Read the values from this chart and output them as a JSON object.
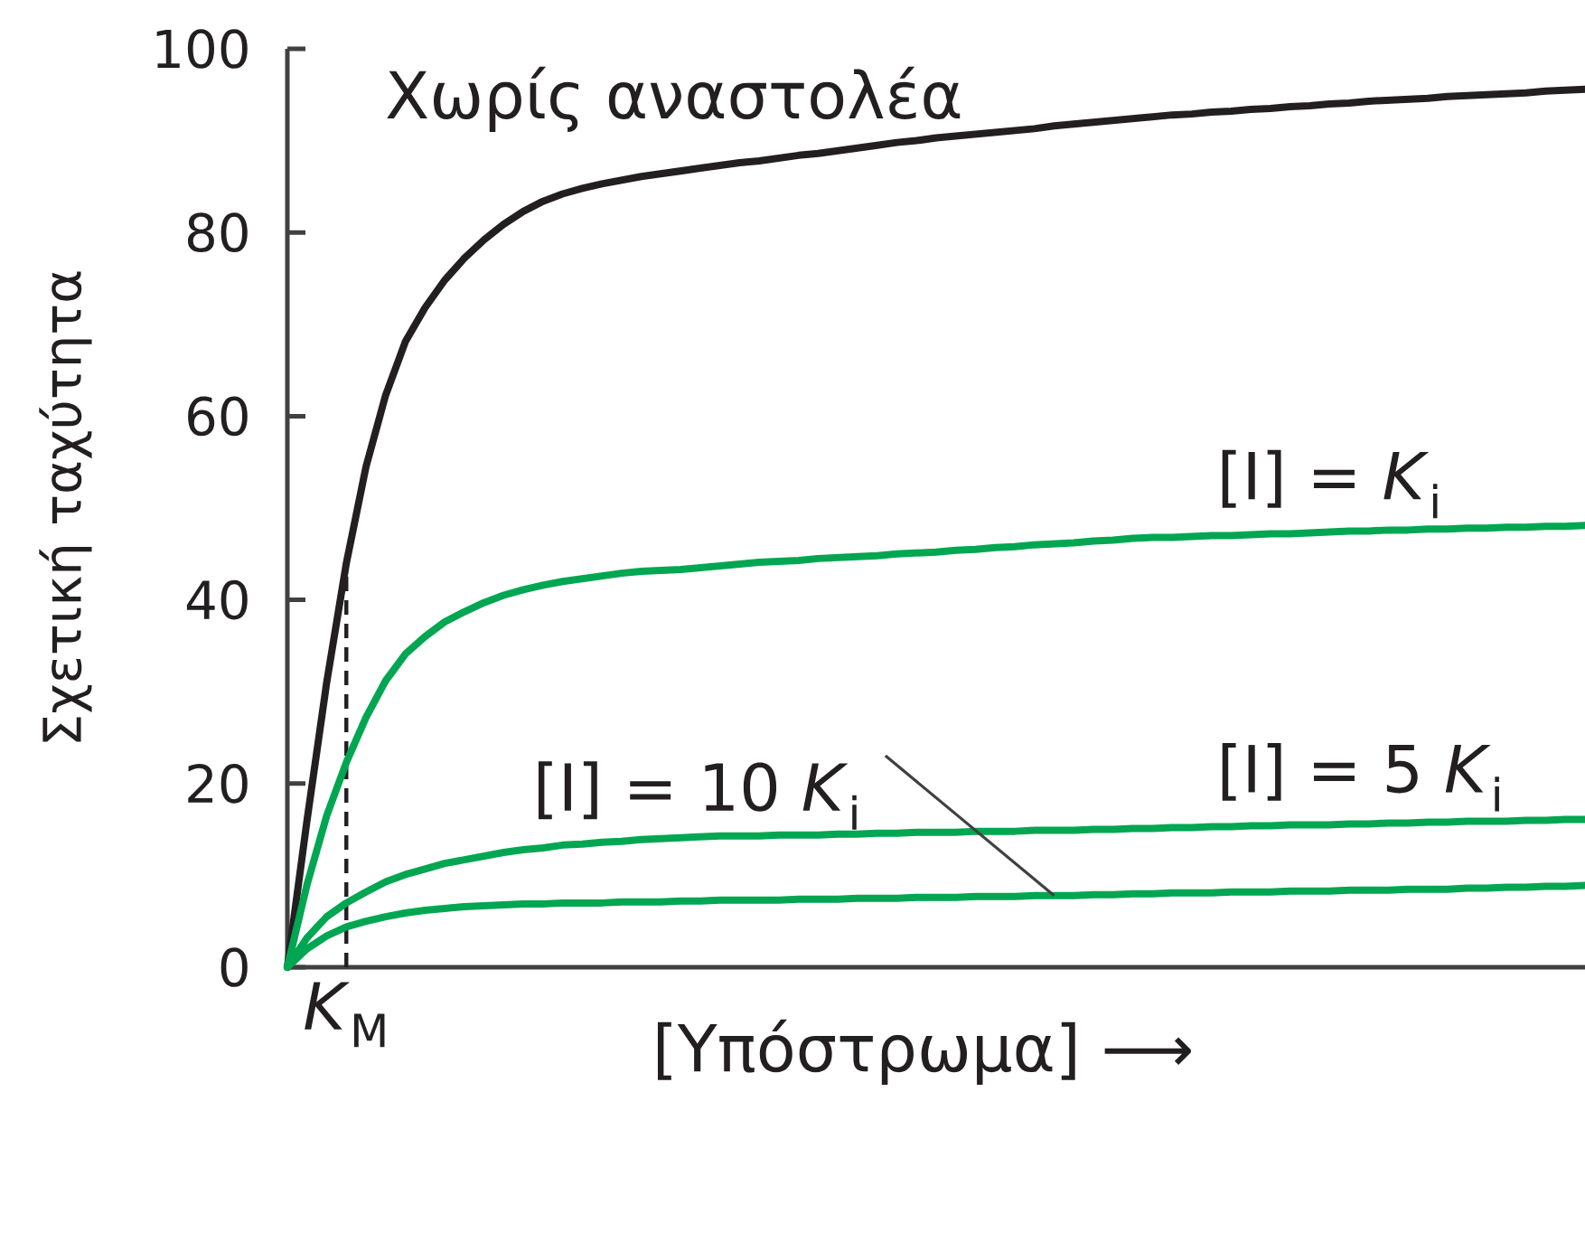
{
  "chart_data": {
    "type": "line",
    "xlabel": "[Υπόστρωμα] ⟶",
    "ylabel": "Σχετική ταχύτητα",
    "categories": [
      null,
      null,
      null,
      "*K*$_{M}$",
      null,
      null,
      null,
      null,
      null,
      null,
      null,
      null,
      null,
      null,
      null,
      null,
      null,
      null,
      null,
      null,
      null,
      null,
      null,
      null,
      null,
      null,
      null,
      null,
      null,
      null,
      null,
      null,
      null,
      null,
      null,
      null,
      null,
      null,
      null,
      null,
      null,
      null,
      null,
      null,
      null,
      null,
      null,
      null,
      null,
      null,
      null,
      null,
      null,
      null,
      null,
      null,
      null,
      null,
      null,
      null,
      null,
      null,
      null,
      null,
      null,
      null,
      null
    ],
    "series": [
      {
        "name": "Χωρίς αναστολέα",
        "color": "#231f20",
        "values": [
          0,
          16,
          31,
          44,
          54.5,
          62.3,
          68.1,
          71.8,
          74.8,
          77.2,
          79.2,
          80.9,
          82.3,
          83.4,
          84.2,
          84.8,
          85.3,
          85.7,
          86.1,
          86.4,
          86.7,
          87.0,
          87.3,
          87.6,
          87.8,
          88.1,
          88.4,
          88.6,
          88.9,
          89.2,
          89.5,
          89.8,
          90.0,
          90.3,
          90.5,
          90.7,
          90.9,
          91.1,
          91.3,
          91.6,
          91.8,
          92.0,
          92.2,
          92.4,
          92.6,
          92.8,
          92.9,
          93.1,
          93.2,
          93.4,
          93.5,
          93.7,
          93.8,
          94.0,
          94.1,
          94.3,
          94.4,
          94.5,
          94.6,
          94.8,
          94.9,
          95.0,
          95.1,
          95.2,
          95.4,
          95.5,
          95.6
        ]
      },
      {
        "name": "[I] = *K*$_{i}$",
        "color": "#00a651",
        "values": [
          0,
          9,
          16.5,
          22.3,
          27.2,
          31.2,
          34.1,
          36.0,
          37.6,
          38.7,
          39.7,
          40.5,
          41.1,
          41.6,
          42.0,
          42.3,
          42.6,
          42.9,
          43.1,
          43.2,
          43.3,
          43.5,
          43.7,
          43.9,
          44.1,
          44.2,
          44.3,
          44.5,
          44.6,
          44.7,
          44.8,
          45.0,
          45.1,
          45.2,
          45.4,
          45.5,
          45.7,
          45.8,
          46.0,
          46.1,
          46.2,
          46.4,
          46.5,
          46.7,
          46.8,
          46.8,
          46.9,
          47.0,
          47.0,
          47.1,
          47.2,
          47.2,
          47.3,
          47.4,
          47.5,
          47.5,
          47.6,
          47.6,
          47.7,
          47.7,
          47.8,
          47.8,
          47.9,
          47.9,
          48.0,
          48.0,
          48.1
        ]
      },
      {
        "name": "[I] = 5 *K*$_{i}$",
        "color": "#00a651",
        "values": [
          0,
          3.2,
          5.5,
          7.0,
          8.2,
          9.3,
          10.1,
          10.7,
          11.3,
          11.7,
          12.1,
          12.5,
          12.8,
          13.0,
          13.3,
          13.4,
          13.6,
          13.7,
          13.9,
          14.0,
          14.1,
          14.2,
          14.3,
          14.3,
          14.3,
          14.4,
          14.4,
          14.4,
          14.5,
          14.5,
          14.6,
          14.6,
          14.7,
          14.7,
          14.7,
          14.8,
          14.8,
          14.8,
          14.9,
          14.9,
          14.9,
          15.0,
          15.0,
          15.1,
          15.1,
          15.2,
          15.2,
          15.3,
          15.3,
          15.4,
          15.4,
          15.5,
          15.5,
          15.5,
          15.6,
          15.6,
          15.7,
          15.7,
          15.8,
          15.8,
          15.9,
          15.9,
          15.9,
          16.0,
          16.0,
          16.1,
          16.1
        ]
      },
      {
        "name": "[I] = 10 *K*$_{i}$",
        "color": "#00a651",
        "values": [
          0,
          2.0,
          3.4,
          4.4,
          5.0,
          5.5,
          5.9,
          6.2,
          6.4,
          6.6,
          6.7,
          6.8,
          6.9,
          6.9,
          7.0,
          7.0,
          7.0,
          7.1,
          7.1,
          7.1,
          7.2,
          7.2,
          7.3,
          7.3,
          7.3,
          7.3,
          7.4,
          7.4,
          7.4,
          7.5,
          7.5,
          7.5,
          7.6,
          7.6,
          7.6,
          7.7,
          7.7,
          7.7,
          7.8,
          7.8,
          7.8,
          7.9,
          7.9,
          8.0,
          8.0,
          8.1,
          8.1,
          8.1,
          8.2,
          8.2,
          8.2,
          8.3,
          8.3,
          8.3,
          8.4,
          8.4,
          8.4,
          8.5,
          8.5,
          8.5,
          8.6,
          8.6,
          8.7,
          8.7,
          8.8,
          8.8,
          8.9
        ]
      }
    ],
    "ylim": [
      0,
      100
    ],
    "yticks": [
      0,
      20,
      40,
      60,
      80,
      100
    ],
    "ref_lines": [
      {
        "axis": "x",
        "value": "*K*$_{M}$",
        "line_style": "dashed",
        "color": "#231f20"
      }
    ]
  }
}
